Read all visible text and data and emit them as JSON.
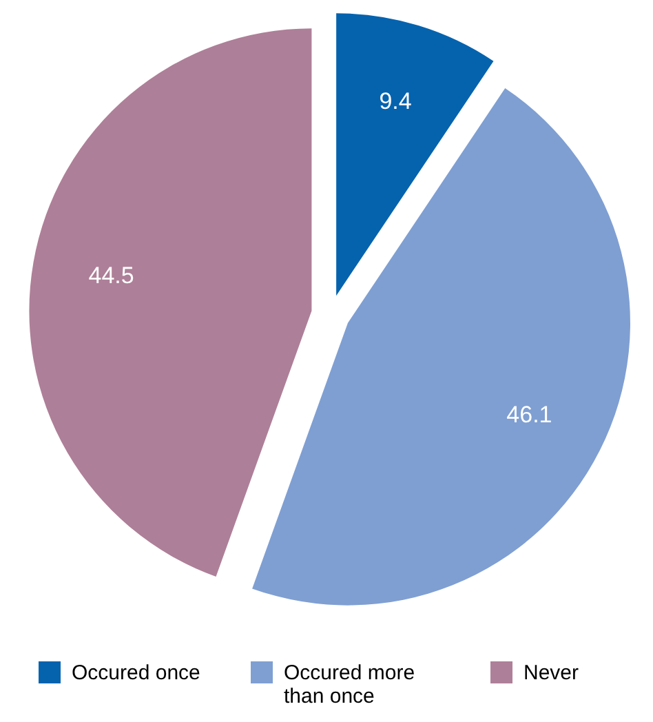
{
  "chart_data": {
    "type": "pie",
    "categories": [
      "Occured once",
      "Occured more than once",
      "Never"
    ],
    "values": [
      9.4,
      46.1,
      44.5
    ],
    "colors": [
      "#0563ae",
      "#7f9fd2",
      "#ae7f98"
    ],
    "data_labels": true,
    "legend": "bottom"
  }
}
